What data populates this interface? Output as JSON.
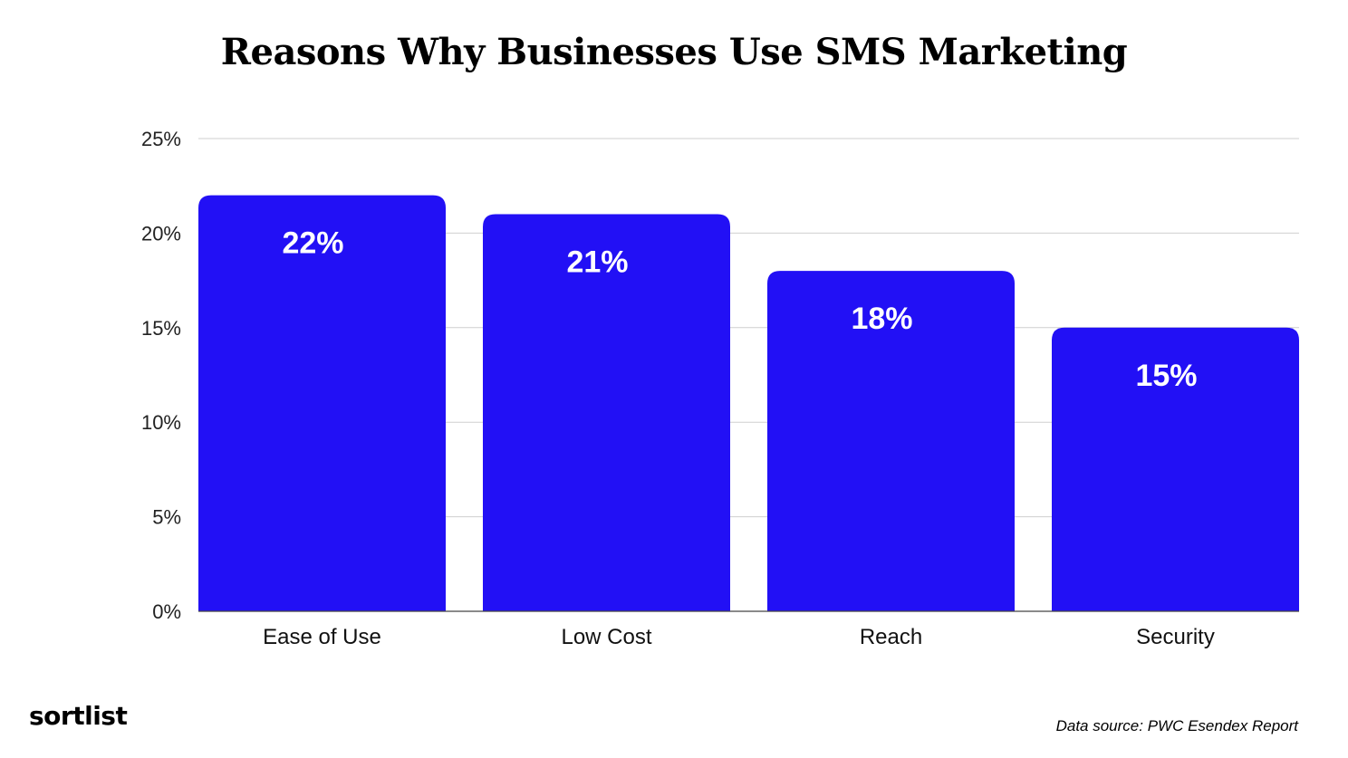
{
  "chart_data": {
    "type": "bar",
    "title": "Reasons Why Businesses Use SMS Marketing",
    "categories": [
      "Ease of Use",
      "Low Cost",
      "Reach",
      "Security"
    ],
    "values": [
      22,
      21,
      18,
      15
    ],
    "data_labels": [
      "22%",
      "21%",
      "18%",
      "15%"
    ],
    "yticks": [
      "0%",
      "5%",
      "10%",
      "15%",
      "20%",
      "25%"
    ],
    "ylim": [
      0,
      25
    ],
    "xlabel": "",
    "ylabel": "",
    "grid": true,
    "bar_color": "#2210f5",
    "label_color": "#ffffff"
  },
  "logo_text": "sortlist",
  "source_text": "Data source: PWC Esendex Report"
}
